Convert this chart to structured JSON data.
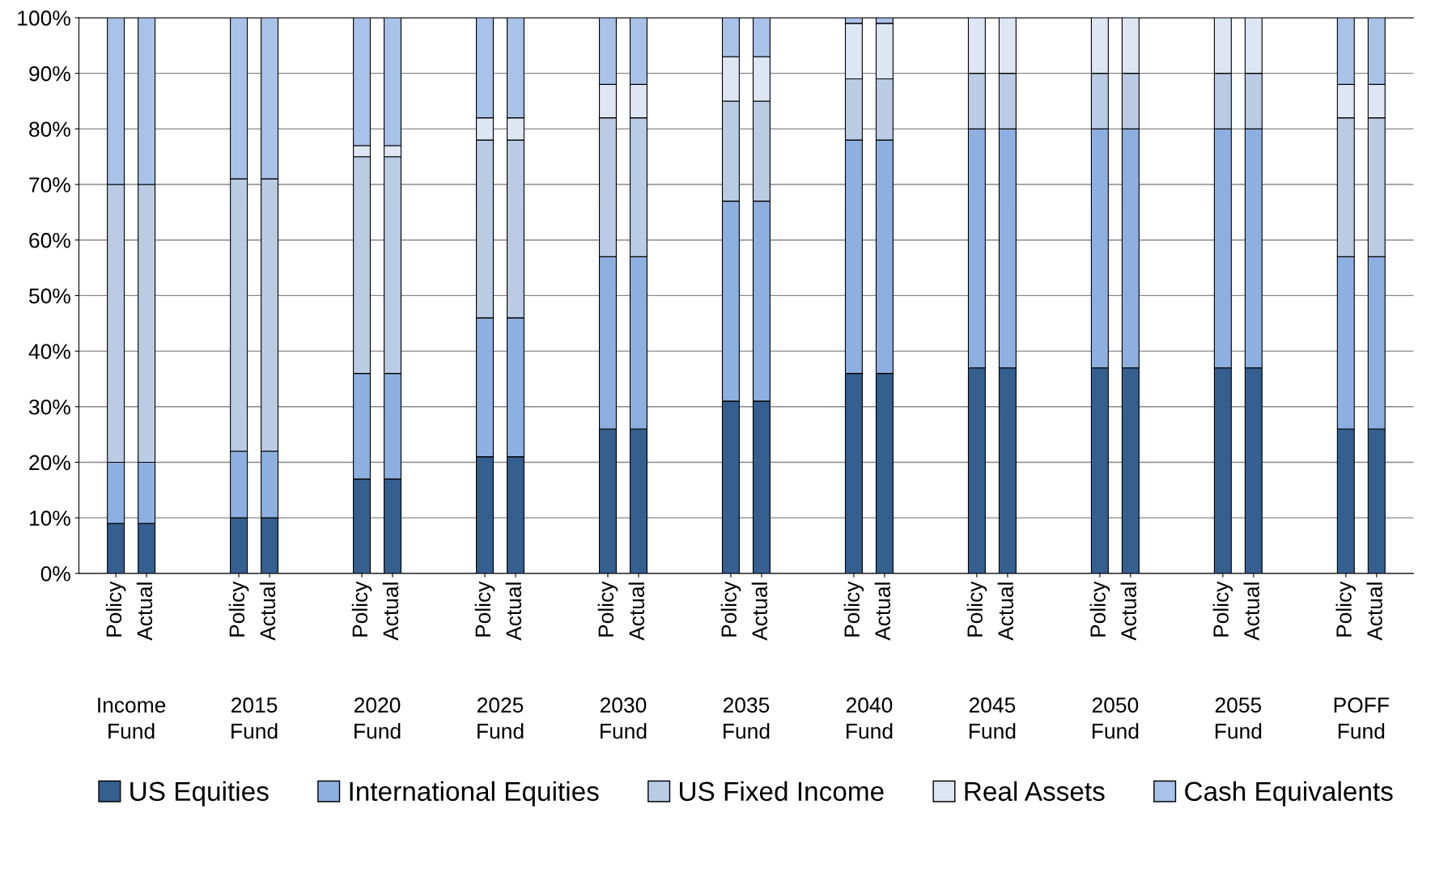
{
  "chart_data": {
    "type": "bar",
    "stacked": true,
    "categories": [
      "Policy",
      "Actual",
      "Policy",
      "Actual",
      "Policy",
      "Actual",
      "Policy",
      "Actual",
      "Policy",
      "Actual",
      "Policy",
      "Actual",
      "Policy",
      "Actual",
      "Policy",
      "Actual",
      "Policy",
      "Actual",
      "Policy",
      "Actual",
      "Policy",
      "Actual"
    ],
    "annotations": [
      "Income\nFund",
      "2015\nFund",
      "2020\nFund",
      "2025\nFund",
      "2030\nFund",
      "2035\nFund",
      "2040\nFund",
      "2045\nFund",
      "2050\nFund",
      "2055\nFund",
      "POFF\nFund"
    ],
    "series": [
      {
        "name": "US Equities",
        "color": "#345f8f",
        "values": [
          9,
          9,
          10,
          10,
          17,
          17,
          21,
          21,
          26,
          26,
          31,
          31,
          36,
          36,
          37,
          37,
          37,
          37,
          37,
          37,
          26,
          26
        ]
      },
      {
        "name": "International Equities",
        "color": "#8db0e0",
        "values": [
          11,
          11,
          12,
          12,
          19,
          19,
          25,
          25,
          31,
          31,
          36,
          36,
          42,
          42,
          43,
          43,
          43,
          43,
          43,
          43,
          31,
          31
        ]
      },
      {
        "name": "US Fixed Income",
        "color": "#b9cce4",
        "values": [
          50,
          50,
          49,
          49,
          39,
          39,
          32,
          32,
          25,
          25,
          18,
          18,
          11,
          11,
          10,
          10,
          10,
          10,
          10,
          10,
          25,
          25
        ]
      },
      {
        "name": "Real Assets",
        "color": "#dde6f2",
        "values": [
          0,
          0,
          0,
          0,
          2,
          2,
          4,
          4,
          6,
          6,
          8,
          8,
          10,
          10,
          10,
          10,
          10,
          10,
          10,
          10,
          6,
          6
        ]
      },
      {
        "name": "Cash Equivalents",
        "color": "#a9c2e8",
        "values": [
          30,
          30,
          29,
          29,
          23,
          23,
          18,
          18,
          12,
          12,
          7,
          7,
          1,
          1,
          0,
          0,
          0,
          0,
          0,
          0,
          12,
          12
        ]
      }
    ],
    "ylim": [
      0,
      100
    ],
    "yticks": [
      {
        "value": 0,
        "label": "0%"
      },
      {
        "value": 10,
        "label": "10%"
      },
      {
        "value": 20,
        "label": "20%"
      },
      {
        "value": 30,
        "label": "30%"
      },
      {
        "value": 40,
        "label": "40%"
      },
      {
        "value": 50,
        "label": "50%"
      },
      {
        "value": 60,
        "label": "60%"
      },
      {
        "value": 70,
        "label": "70%"
      },
      {
        "value": 80,
        "label": "80%"
      },
      {
        "value": 90,
        "label": "90%"
      },
      {
        "value": 100,
        "label": "100%"
      }
    ],
    "grid": "y",
    "legend": "bottom"
  }
}
